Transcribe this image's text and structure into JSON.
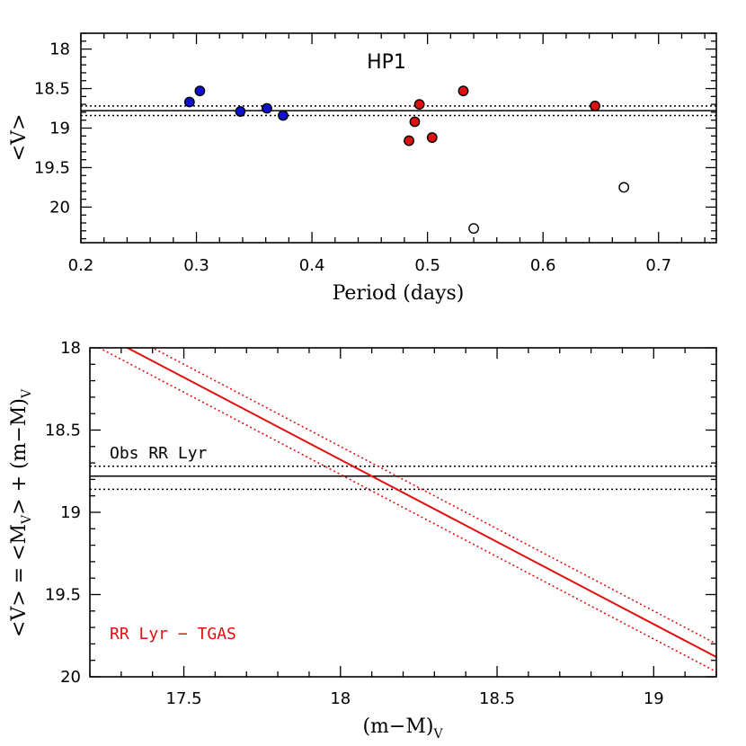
{
  "chart_data": [
    {
      "type": "scatter",
      "title": "HP1",
      "xlabel": "Period (days)",
      "ylabel": "<V>",
      "xlim": [
        0.2,
        0.75
      ],
      "ylim": [
        20.45,
        17.8
      ],
      "x_ticks": [
        "0.2",
        "0.3",
        "0.4",
        "0.5",
        "0.6",
        "0.7"
      ],
      "y_ticks": [
        "18",
        "18.5",
        "19",
        "19.5",
        "20"
      ],
      "grid": false,
      "series": [
        {
          "color": "#1010d0",
          "fill": true,
          "points": [
            [
              0.294,
              18.67
            ],
            [
              0.303,
              18.53
            ],
            [
              0.338,
              18.79
            ],
            [
              0.361,
              18.75
            ],
            [
              0.375,
              18.84
            ]
          ]
        },
        {
          "color": "#e01010",
          "fill": true,
          "points": [
            [
              0.493,
              18.7
            ],
            [
              0.531,
              18.53
            ],
            [
              0.645,
              18.72
            ],
            [
              0.489,
              18.92
            ],
            [
              0.484,
              19.16
            ],
            [
              0.504,
              19.12
            ]
          ]
        },
        {
          "color": "#ffffff",
          "fill": false,
          "points": [
            [
              0.67,
              19.75
            ],
            [
              0.54,
              20.27
            ]
          ]
        }
      ],
      "hlines": [
        {
          "y": 18.78,
          "style": "solid",
          "color": "#000000"
        },
        {
          "y": 18.72,
          "style": "dotted",
          "color": "#000000"
        },
        {
          "y": 18.84,
          "style": "dotted",
          "color": "#000000"
        }
      ]
    },
    {
      "type": "line",
      "xlabel": "(m−M)",
      "xlabel_sub": "V",
      "ylabel": "<V> = <M",
      "ylabel_sub1": "V",
      "ylabel_mid": "> + (m−M)",
      "ylabel_sub2": "V",
      "xlim": [
        17.2,
        19.2
      ],
      "ylim": [
        20.0,
        18.0
      ],
      "x_ticks": [
        "17.5",
        "18",
        "18.5",
        "19"
      ],
      "y_ticks": [
        "18",
        "18.5",
        "19",
        "19.5",
        "20"
      ],
      "grid": false,
      "series": [
        {
          "color": "#e01010",
          "style": "solid",
          "points": [
            [
              17.0,
              17.68
            ],
            [
              19.2,
              19.88
            ]
          ]
        },
        {
          "color": "#e01010",
          "style": "dotted",
          "points": [
            [
              17.0,
              17.6
            ],
            [
              19.2,
              19.8
            ]
          ]
        },
        {
          "color": "#e01010",
          "style": "dotted",
          "points": [
            [
              17.0,
              17.77
            ],
            [
              19.2,
              19.97
            ]
          ]
        }
      ],
      "hlines": [
        {
          "y": 18.78,
          "style": "solid",
          "color": "#000000"
        },
        {
          "y": 18.72,
          "style": "dotted",
          "color": "#000000"
        },
        {
          "y": 18.86,
          "style": "dotted",
          "color": "#000000"
        }
      ],
      "annotations": [
        {
          "text": "Obs RR Lyr",
          "color": "#000000"
        },
        {
          "text": "RR Lyr − TGAS",
          "color": "#e01010"
        }
      ]
    }
  ]
}
